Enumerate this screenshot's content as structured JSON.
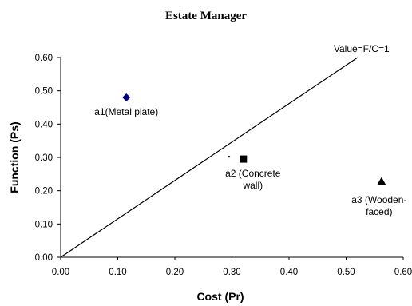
{
  "chart_data": {
    "type": "scatter",
    "title": "Estate Manager",
    "xlabel": "Cost (Pr)",
    "ylabel": "Function (Ps)",
    "xlim": [
      0,
      0.6
    ],
    "ylim": [
      0,
      0.6
    ],
    "xticks": [
      "0.00",
      "0.10",
      "0.20",
      "0.30",
      "0.40",
      "0.50",
      "0.60"
    ],
    "yticks": [
      "0.00",
      "0.10",
      "0.20",
      "0.30",
      "0.40",
      "0.50",
      "0.60"
    ],
    "grid": false,
    "points": [
      {
        "label": [
          "a1(Metal plate)"
        ],
        "x": 0.115,
        "y": 0.48,
        "marker": "diamond",
        "color": "#000080"
      },
      {
        "label": [
          "a2 (Concrete",
          "wall)"
        ],
        "x": 0.32,
        "y": 0.295,
        "marker": "square",
        "color": "#000000"
      },
      {
        "label": [
          "a3 (Wooden-",
          "faced)"
        ],
        "x": 0.562,
        "y": 0.228,
        "marker": "triangle",
        "color": "#000000"
      }
    ],
    "stray_point": {
      "x": 0.295,
      "y": 0.302
    },
    "reference_line": {
      "label": "Value=F/C=1",
      "x": [
        0,
        0.52
      ],
      "y": [
        0,
        0.6
      ]
    }
  }
}
